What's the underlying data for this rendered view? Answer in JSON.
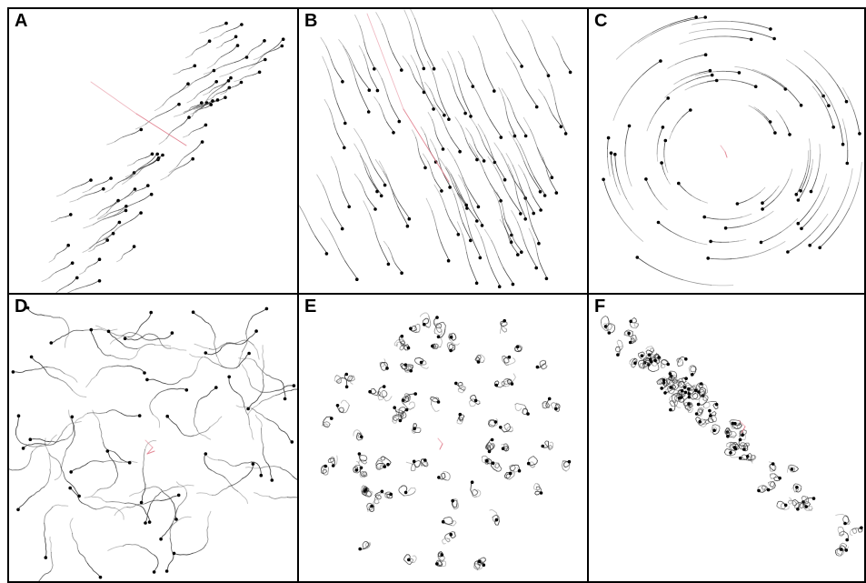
{
  "panels": [
    {
      "label": "A",
      "pattern": "diagonal-band"
    },
    {
      "label": "B",
      "pattern": "parallel-streams"
    },
    {
      "label": "C",
      "pattern": "vortex"
    },
    {
      "label": "D",
      "pattern": "random-curved-walk"
    },
    {
      "label": "E",
      "pattern": "looping-walk"
    },
    {
      "label": "F",
      "pattern": "diagonal-band-looping"
    }
  ],
  "colors": {
    "trail": "#3a3a3a",
    "head": "#000000",
    "highlight": "#e07a8a",
    "frame": "#000000"
  }
}
